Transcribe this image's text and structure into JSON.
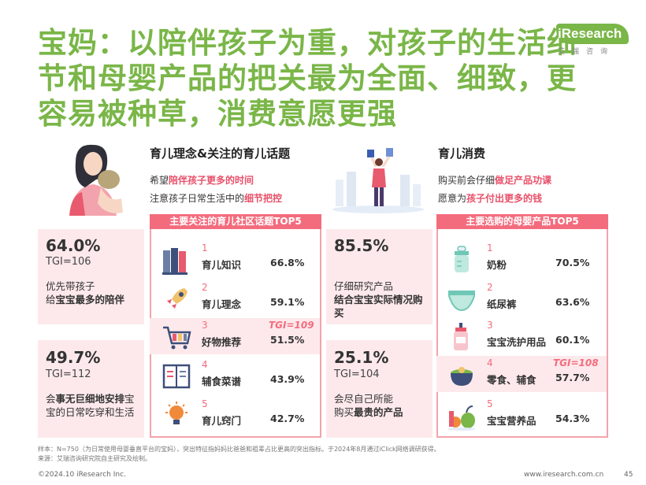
{
  "title_lines": [
    "宝妈：以陪伴孩子为重，对孩子的生活细",
    "节和母婴产品的把关最为全面、细致，更",
    "容易被种草，消费意愿更强"
  ],
  "logo": {
    "text": "iResearch",
    "sub": "艾瑞咨询"
  },
  "left_section": {
    "heading": "育儿理念&关注的育儿话题",
    "line1_pre": "希望",
    "line1_hl": "陪伴孩子更多的时间",
    "line2_pre": "注意孩子日常生活中的",
    "line2_hl": "细节把控",
    "box_title": "主要关注的育儿社区话题TOP5",
    "stats": [
      {
        "pct": "64.0%",
        "tgi": "TGI=106",
        "desc_plain1": "优先带孩子",
        "desc_plain2": "给",
        "desc_bold": "宝宝最多的陪伴"
      },
      {
        "pct": "49.7%",
        "tgi": "TGI=112",
        "desc_plain1": "会",
        "desc_bold": "事无巨细地安排",
        "desc_plain2": "宝宝的日常吃穿和生活"
      }
    ],
    "items": [
      {
        "rank": "1",
        "name": "育儿知识",
        "value": "66.8%",
        "icon": "books-icon"
      },
      {
        "rank": "2",
        "name": "育儿理念",
        "value": "59.1%",
        "icon": "rocket-icon"
      },
      {
        "rank": "3",
        "name": "好物推荐",
        "value": "51.5%",
        "icon": "cart-icon",
        "note": "TGI=109"
      },
      {
        "rank": "4",
        "name": "辅食菜谱",
        "value": "43.9%",
        "icon": "recipe-book-icon"
      },
      {
        "rank": "5",
        "name": "育儿窍门",
        "value": "42.7%",
        "icon": "lightbulb-icon"
      }
    ]
  },
  "right_section": {
    "heading": "育儿消费",
    "line1_pre": "购买前会仔细",
    "line1_hl": "做足产品功课",
    "line2_pre": "愿意为",
    "line2_hl": "孩子付出更多的钱",
    "box_title": "主要选购的母婴产品TOP5",
    "stats": [
      {
        "pct": "85.5%",
        "tgi": "",
        "desc_plain1": "仔细研究产品",
        "desc_bold": "结合宝宝实际情况购买",
        "desc_plain2": ""
      },
      {
        "pct": "25.1%",
        "tgi": "TGI=104",
        "desc_plain1": "会尽自己所能",
        "desc_plain2": "购买",
        "desc_bold": "最贵的产品"
      }
    ],
    "items": [
      {
        "rank": "1",
        "name": "奶粉",
        "value": "70.5%",
        "icon": "milk-bottle-icon"
      },
      {
        "rank": "2",
        "name": "纸尿裤",
        "value": "63.6%",
        "icon": "diaper-icon"
      },
      {
        "rank": "3",
        "name": "宝宝洗护用品",
        "value": "60.1%",
        "icon": "lotion-bottle-icon"
      },
      {
        "rank": "4",
        "name": "零食、辅食",
        "value": "57.7%",
        "icon": "food-bowl-icon",
        "note": "TGI=108"
      },
      {
        "rank": "5",
        "name": "宝宝营养品",
        "value": "54.3%",
        "icon": "nutrition-icon"
      }
    ]
  },
  "footnote1": "样本：N=750（为日常使用母婴垂直平台的宝妈），突出特征指妈妈比爸爸和祖辈占比更高的突出指标。于2024年8月通过iClick网络调研获得。",
  "footnote2": "来源：艾瑞咨询研究院自主研究及绘制。",
  "copyright": "©2024.10 iResearch Inc.",
  "website": "www.iresearch.com.cn",
  "page_number": "45",
  "colors": {
    "title_green": "#7ab648",
    "accent_pink": "#f36c7e",
    "highlight_red": "#e8506a",
    "stat_bg": "#fde9eb"
  }
}
